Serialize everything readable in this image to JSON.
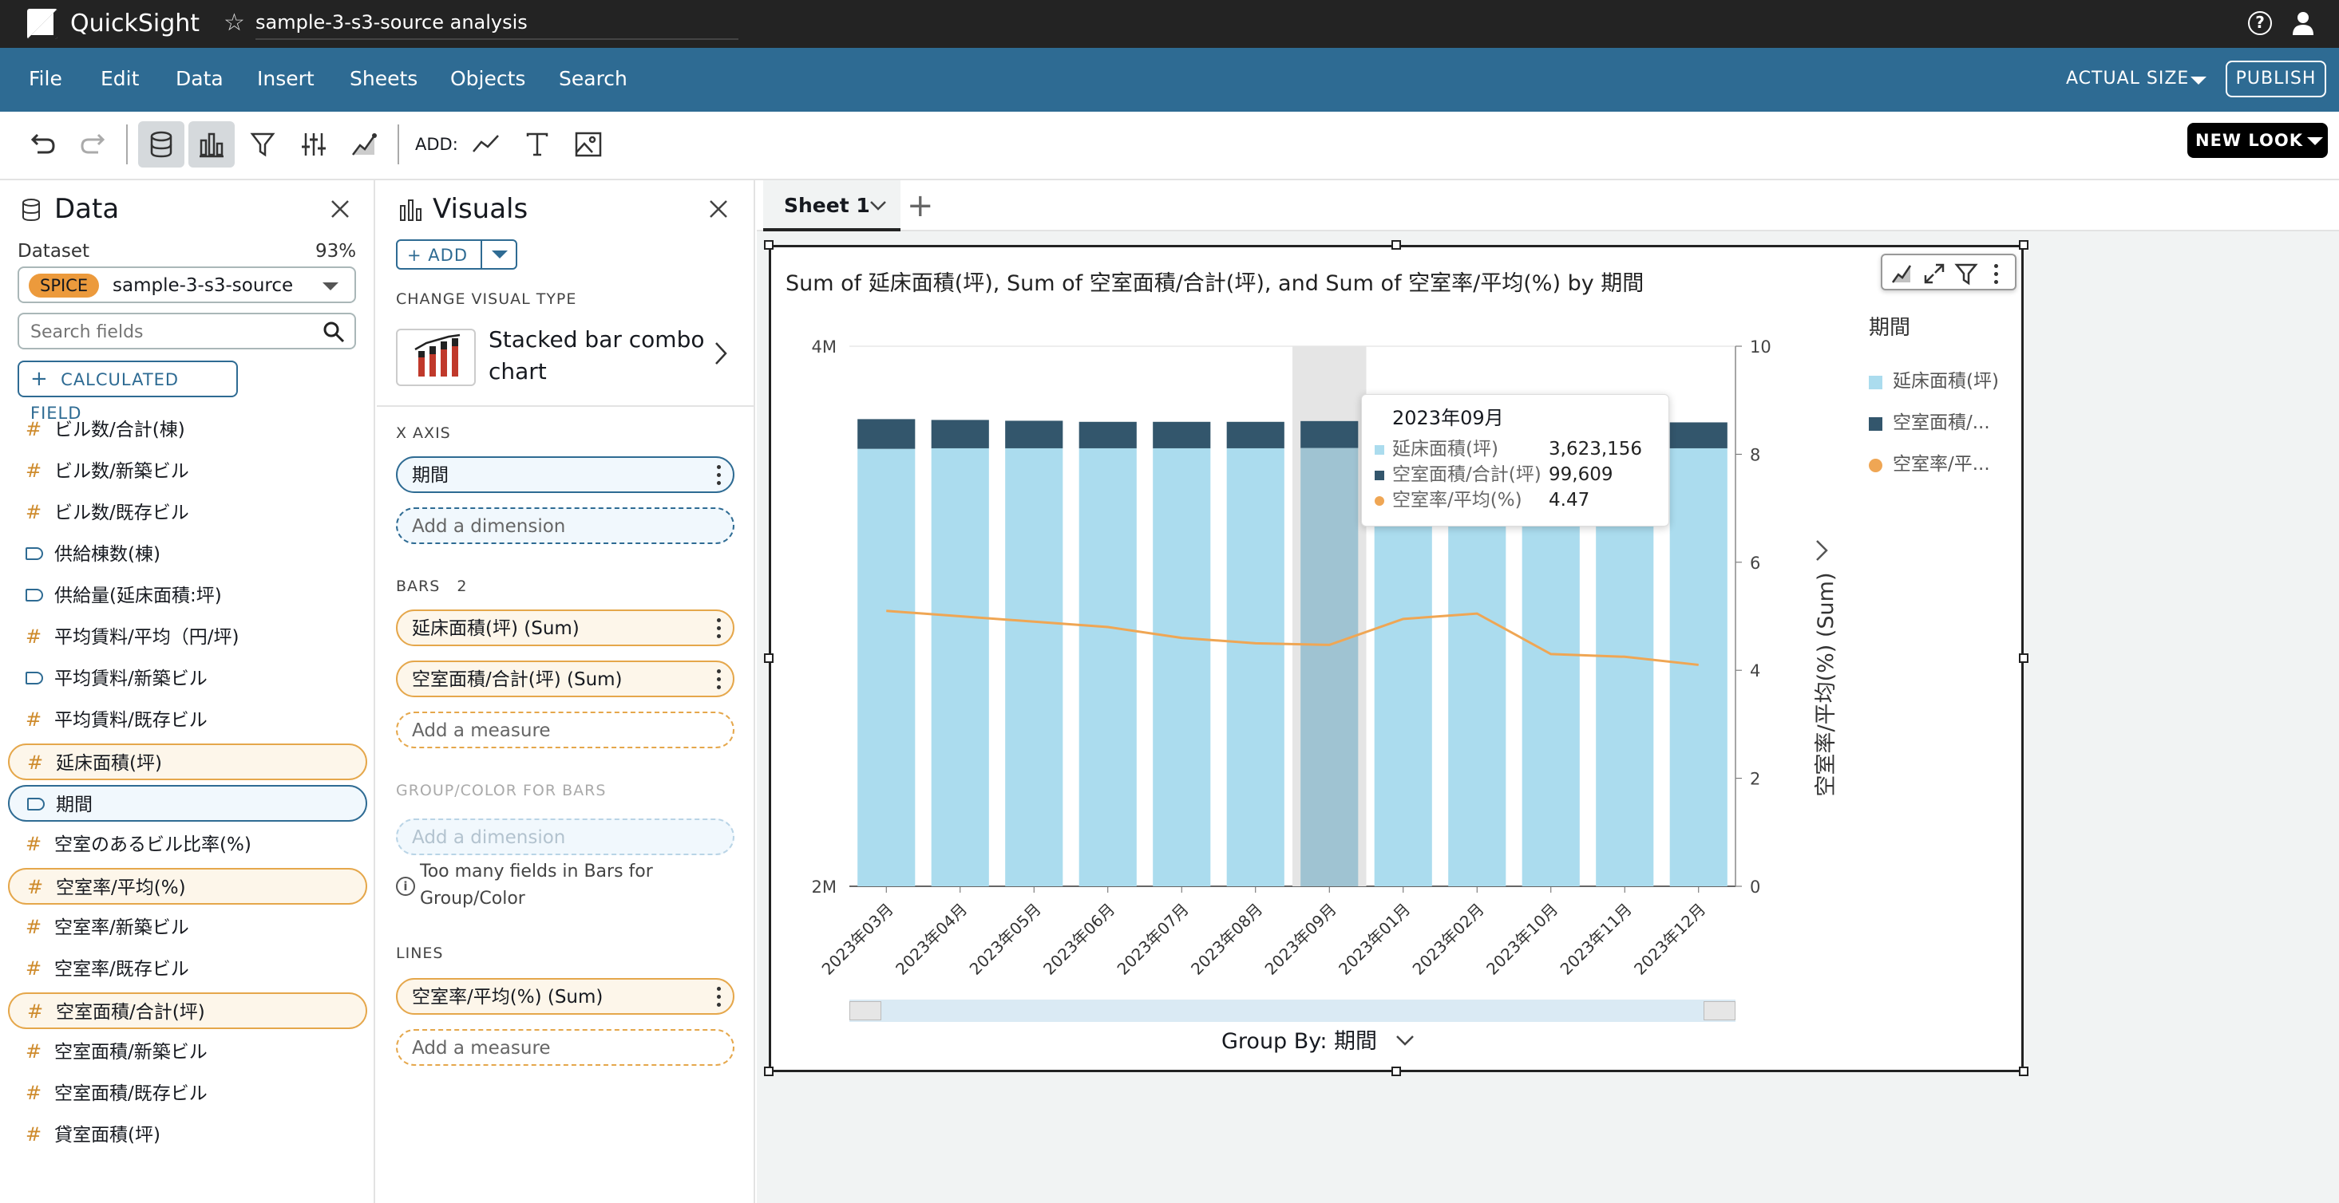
{
  "app": {
    "name": "QuickSight",
    "analysis_name": "sample-3-s3-source analysis"
  },
  "menu": {
    "items": [
      "File",
      "Edit",
      "Data",
      "Insert",
      "Sheets",
      "Objects",
      "Search"
    ],
    "actual_size": "ACTUAL SIZE",
    "publish": "PUBLISH"
  },
  "toolbar": {
    "add_label": "ADD:",
    "new_look": "NEW LOOK"
  },
  "data_panel": {
    "title": "Data",
    "dataset_label": "Dataset",
    "dataset_percent": "93%",
    "spice_badge": "SPICE",
    "dataset_name": "sample-3-s3-source",
    "search_placeholder": "Search fields",
    "calculated_field": "CALCULATED FIELD",
    "fields": [
      {
        "label": "ビル数/合計(棟)",
        "kind": "measure",
        "state": ""
      },
      {
        "label": "ビル数/新築ビル",
        "kind": "measure",
        "state": ""
      },
      {
        "label": "ビル数/既存ビル",
        "kind": "measure",
        "state": ""
      },
      {
        "label": "供給棟数(棟)",
        "kind": "dimension",
        "state": ""
      },
      {
        "label": "供給量(延床面積:坪)",
        "kind": "dimension",
        "state": ""
      },
      {
        "label": "平均賃料/平均（円/坪)",
        "kind": "measure",
        "state": ""
      },
      {
        "label": "平均賃料/新築ビル",
        "kind": "dimension",
        "state": ""
      },
      {
        "label": "平均賃料/既存ビル",
        "kind": "measure",
        "state": ""
      },
      {
        "label": "延床面積(坪)",
        "kind": "measure",
        "state": "selected"
      },
      {
        "label": "期間",
        "kind": "dimension",
        "state": "selected-dim"
      },
      {
        "label": "空室のあるビル比率(%)",
        "kind": "measure",
        "state": ""
      },
      {
        "label": "空室率/平均(%)",
        "kind": "measure",
        "state": "selected"
      },
      {
        "label": "空室率/新築ビル",
        "kind": "measure",
        "state": ""
      },
      {
        "label": "空室率/既存ビル",
        "kind": "measure",
        "state": ""
      },
      {
        "label": "空室面積/合計(坪)",
        "kind": "measure",
        "state": "selected"
      },
      {
        "label": "空室面積/新築ビル",
        "kind": "measure",
        "state": ""
      },
      {
        "label": "空室面積/既存ビル",
        "kind": "measure",
        "state": ""
      },
      {
        "label": "貸室面積(坪)",
        "kind": "measure",
        "state": ""
      }
    ]
  },
  "visuals_panel": {
    "title": "Visuals",
    "add": "ADD",
    "change_type_label": "CHANGE VISUAL TYPE",
    "visual_type_line1": "Stacked bar combo",
    "visual_type_line2": "chart",
    "x_axis_label": "X AXIS",
    "x_axis_field": "期間",
    "add_dimension": "Add a dimension",
    "bars_label": "BARS",
    "bars_count": "2",
    "bar_fields": [
      "延床面積(坪) (Sum)",
      "空室面積/合計(坪) (Sum)"
    ],
    "add_measure": "Add a measure",
    "group_color_label": "GROUP/COLOR FOR BARS",
    "group_add_dimension": "Add a dimension",
    "too_many_line1": "Too many fields in Bars for",
    "too_many_line2": "Group/Color",
    "lines_label": "LINES",
    "line_field": "空室率/平均(%) (Sum)",
    "add_measure_lines": "Add a measure"
  },
  "sheet": {
    "tab": "Sheet 1"
  },
  "visual": {
    "title": "Sum of 延床面積(坪), Sum of 空室面積/合計(坪), and Sum of 空室率/平均(%) by 期間",
    "legend_title": "期間",
    "legend_items": [
      "延床面積(坪)",
      "空室面積/...",
      "空室率/平..."
    ],
    "group_by": "Group By: 期間",
    "tooltip": {
      "title": "2023年09月",
      "rows": [
        {
          "name": "延床面積(坪)",
          "value": "3,623,156"
        },
        {
          "name": "空室面積/合計(坪)",
          "value": "99,609"
        },
        {
          "name": "空室率/平均(%)",
          "value": "4.47"
        }
      ]
    },
    "colors": {
      "bar_light": "#abdcee",
      "bar_dark": "#33566c",
      "line": "#efa654",
      "highlight": "#9fc3d2"
    }
  },
  "chart_data": {
    "type": "bar",
    "categories": [
      "2023年03月",
      "2023年04月",
      "2023年05月",
      "2023年06月",
      "2023年07月",
      "2023年08月",
      "2023年09月",
      "2023年01月",
      "2023年02月",
      "2023年10月",
      "2023年11月",
      "2023年12月"
    ],
    "series": [
      {
        "name": "延床面積(坪)",
        "values": [
          3620000,
          3622000,
          3622000,
          3622000,
          3622000,
          3622000,
          3623156,
          3619000,
          3619000,
          3624000,
          3624000,
          3622000
        ]
      },
      {
        "name": "空室面積/合計(坪)",
        "values": [
          110000,
          105000,
          102000,
          98000,
          98000,
          98000,
          99609,
          100000,
          101000,
          99000,
          96000,
          96000
        ]
      },
      {
        "name": "空室率/平均(%)",
        "type": "line",
        "axis": "right",
        "values": [
          5.1,
          5.0,
          4.9,
          4.8,
          4.6,
          4.5,
          4.47,
          4.95,
          5.05,
          4.3,
          4.25,
          4.1
        ]
      }
    ],
    "y_left_ticks": [
      "2M",
      "4M"
    ],
    "ylim_left": [
      2000000,
      4000000
    ],
    "y_right_ticks": [
      "0",
      "2",
      "4",
      "6",
      "8",
      "10"
    ],
    "ylim_right": [
      0,
      10
    ],
    "ylabel_right": "空室率/平均(%) (Sum)",
    "highlight_category": "2023年09月",
    "legend": "right"
  }
}
